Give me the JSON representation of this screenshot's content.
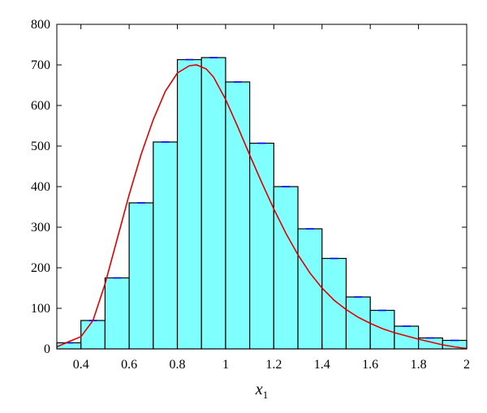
{
  "chart_data": {
    "type": "bar",
    "xlabel": "x",
    "xlabel_subscript": "1",
    "ylabel": "",
    "xlim": [
      0.3,
      2.0
    ],
    "ylim": [
      0,
      800
    ],
    "x_ticks": [
      "0.4",
      "0.6",
      "0.8",
      "1",
      "1.2",
      "1.4",
      "1.6",
      "1.8",
      "2"
    ],
    "y_ticks": [
      "0",
      "100",
      "200",
      "300",
      "400",
      "500",
      "600",
      "700",
      "800"
    ],
    "bin_width": 0.1,
    "bins": [
      {
        "x0": 0.3,
        "x1": 0.4,
        "value": 15
      },
      {
        "x0": 0.4,
        "x1": 0.5,
        "value": 70
      },
      {
        "x0": 0.5,
        "x1": 0.6,
        "value": 175
      },
      {
        "x0": 0.6,
        "x1": 0.7,
        "value": 360
      },
      {
        "x0": 0.7,
        "x1": 0.8,
        "value": 510
      },
      {
        "x0": 0.8,
        "x1": 0.9,
        "value": 713
      },
      {
        "x0": 0.9,
        "x1": 1.0,
        "value": 718
      },
      {
        "x0": 1.0,
        "x1": 1.1,
        "value": 658
      },
      {
        "x0": 1.1,
        "x1": 1.2,
        "value": 507
      },
      {
        "x0": 1.2,
        "x1": 1.3,
        "value": 400
      },
      {
        "x0": 1.3,
        "x1": 1.4,
        "value": 296
      },
      {
        "x0": 1.4,
        "x1": 1.5,
        "value": 223
      },
      {
        "x0": 1.5,
        "x1": 1.6,
        "value": 128
      },
      {
        "x0": 1.6,
        "x1": 1.7,
        "value": 95
      },
      {
        "x0": 1.7,
        "x1": 1.8,
        "value": 56
      },
      {
        "x0": 1.8,
        "x1": 1.9,
        "value": 27
      },
      {
        "x0": 1.9,
        "x1": 2.0,
        "value": 21
      }
    ],
    "curve": {
      "x": [
        0.3,
        0.35,
        0.4,
        0.45,
        0.5,
        0.55,
        0.6,
        0.65,
        0.7,
        0.75,
        0.8,
        0.85,
        0.88,
        0.92,
        0.95,
        1.0,
        1.05,
        1.1,
        1.15,
        1.2,
        1.25,
        1.3,
        1.35,
        1.4,
        1.45,
        1.5,
        1.55,
        1.6,
        1.65,
        1.7,
        1.75,
        1.8,
        1.85,
        1.9,
        1.95,
        2.0
      ],
      "y": [
        5,
        18,
        30,
        70,
        160,
        270,
        380,
        480,
        565,
        635,
        680,
        698,
        700,
        690,
        670,
        615,
        548,
        478,
        410,
        345,
        285,
        232,
        187,
        150,
        120,
        97,
        78,
        63,
        50,
        40,
        32,
        24,
        17,
        10,
        5,
        1
      ]
    },
    "colors": {
      "bar_fill": "#80ffff",
      "bar_edge": "#000000",
      "curve": "#e00000",
      "markers": "#0000ff"
    },
    "grid": false,
    "legend": "none"
  }
}
